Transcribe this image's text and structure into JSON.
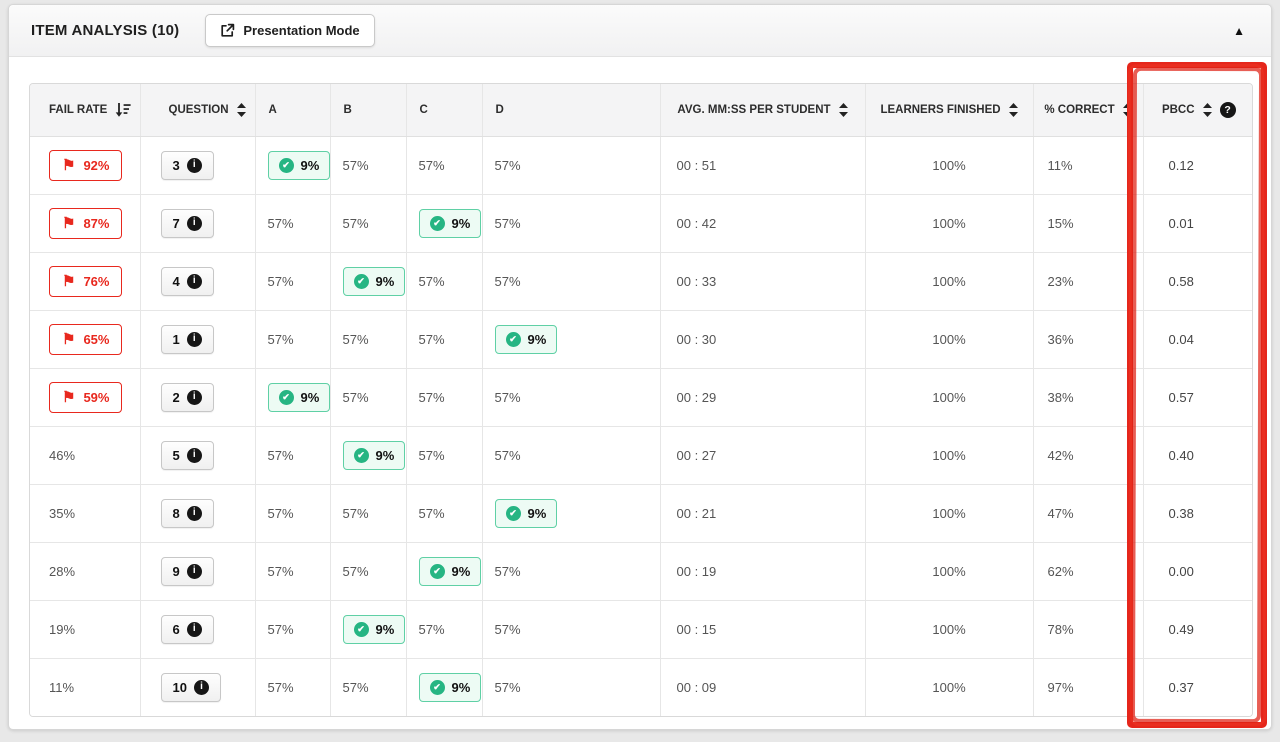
{
  "panel": {
    "title": "ITEM ANALYSIS (10)",
    "presentation_button": "Presentation Mode",
    "question_count": 10
  },
  "icons": {
    "flag": "⚑",
    "check": "✔",
    "info": "i",
    "help": "?",
    "caret_up": "▲",
    "external_link": "external-link-icon",
    "sort_active": "sort-amount-desc-icon",
    "sort": "sort-up-down-icon"
  },
  "colors": {
    "flag_red": "#e8281e",
    "annotation_red": "#e5261b",
    "correct_green": "#26b583",
    "correct_badge_bg": "#edfbf4",
    "correct_badge_border": "#5fd0a5",
    "header_bg": "#f4f4f5"
  },
  "table": {
    "columns": [
      {
        "key": "fail_rate",
        "label": "FAIL RATE",
        "sort": "descending-active"
      },
      {
        "key": "question",
        "label": "QUESTION",
        "sort": "sortable"
      },
      {
        "key": "a",
        "label": "A",
        "sort": "none"
      },
      {
        "key": "b",
        "label": "B",
        "sort": "none"
      },
      {
        "key": "c",
        "label": "C",
        "sort": "none"
      },
      {
        "key": "d",
        "label": "D",
        "sort": "none"
      },
      {
        "key": "avg_time",
        "label": "AVG. MM:SS PER STUDENT",
        "sort": "sortable"
      },
      {
        "key": "learners_finished",
        "label": "LEARNERS FINISHED",
        "sort": "sortable"
      },
      {
        "key": "pct_correct",
        "label": "% CORRECT",
        "sort": "sortable"
      },
      {
        "key": "pbcc",
        "label": "PBCC",
        "sort": "sortable",
        "help": true
      }
    ],
    "rows": [
      {
        "fail_rate": "92%",
        "flagged": true,
        "question": "3",
        "answers": {
          "a": {
            "value": "9%",
            "correct": true
          },
          "b": {
            "value": "57%"
          },
          "c": {
            "value": "57%"
          },
          "d": {
            "value": "57%"
          }
        },
        "avg_time": "00 : 51",
        "learners_finished": "100%",
        "pct_correct": "11%",
        "pbcc": "0.12"
      },
      {
        "fail_rate": "87%",
        "flagged": true,
        "question": "7",
        "answers": {
          "a": {
            "value": "57%"
          },
          "b": {
            "value": "57%"
          },
          "c": {
            "value": "9%",
            "correct": true
          },
          "d": {
            "value": "57%"
          }
        },
        "avg_time": "00 : 42",
        "learners_finished": "100%",
        "pct_correct": "15%",
        "pbcc": "0.01"
      },
      {
        "fail_rate": "76%",
        "flagged": true,
        "question": "4",
        "answers": {
          "a": {
            "value": "57%"
          },
          "b": {
            "value": "9%",
            "correct": true
          },
          "c": {
            "value": "57%"
          },
          "d": {
            "value": "57%"
          }
        },
        "avg_time": "00 : 33",
        "learners_finished": "100%",
        "pct_correct": "23%",
        "pbcc": "0.58"
      },
      {
        "fail_rate": "65%",
        "flagged": true,
        "question": "1",
        "answers": {
          "a": {
            "value": "57%"
          },
          "b": {
            "value": "57%"
          },
          "c": {
            "value": "57%"
          },
          "d": {
            "value": "9%",
            "correct": true
          }
        },
        "avg_time": "00 : 30",
        "learners_finished": "100%",
        "pct_correct": "36%",
        "pbcc": "0.04"
      },
      {
        "fail_rate": "59%",
        "flagged": true,
        "question": "2",
        "answers": {
          "a": {
            "value": "9%",
            "correct": true
          },
          "b": {
            "value": "57%"
          },
          "c": {
            "value": "57%"
          },
          "d": {
            "value": "57%"
          }
        },
        "avg_time": "00 : 29",
        "learners_finished": "100%",
        "pct_correct": "38%",
        "pbcc": "0.57"
      },
      {
        "fail_rate": "46%",
        "flagged": false,
        "question": "5",
        "answers": {
          "a": {
            "value": "57%"
          },
          "b": {
            "value": "9%",
            "correct": true
          },
          "c": {
            "value": "57%"
          },
          "d": {
            "value": "57%"
          }
        },
        "avg_time": "00 : 27",
        "learners_finished": "100%",
        "pct_correct": "42%",
        "pbcc": "0.40"
      },
      {
        "fail_rate": "35%",
        "flagged": false,
        "question": "8",
        "answers": {
          "a": {
            "value": "57%"
          },
          "b": {
            "value": "57%"
          },
          "c": {
            "value": "57%"
          },
          "d": {
            "value": "9%",
            "correct": true
          }
        },
        "avg_time": "00 : 21",
        "learners_finished": "100%",
        "pct_correct": "47%",
        "pbcc": "0.38"
      },
      {
        "fail_rate": "28%",
        "flagged": false,
        "question": "9",
        "answers": {
          "a": {
            "value": "57%"
          },
          "b": {
            "value": "57%"
          },
          "c": {
            "value": "9%",
            "correct": true
          },
          "d": {
            "value": "57%"
          }
        },
        "avg_time": "00 : 19",
        "learners_finished": "100%",
        "pct_correct": "62%",
        "pbcc": "0.00"
      },
      {
        "fail_rate": "19%",
        "flagged": false,
        "question": "6",
        "answers": {
          "a": {
            "value": "57%"
          },
          "b": {
            "value": "9%",
            "correct": true
          },
          "c": {
            "value": "57%"
          },
          "d": {
            "value": "57%"
          }
        },
        "avg_time": "00 : 15",
        "learners_finished": "100%",
        "pct_correct": "78%",
        "pbcc": "0.49"
      },
      {
        "fail_rate": "11%",
        "flagged": false,
        "question": "10",
        "answers": {
          "a": {
            "value": "57%"
          },
          "b": {
            "value": "57%"
          },
          "c": {
            "value": "9%",
            "correct": true
          },
          "d": {
            "value": "57%"
          }
        },
        "avg_time": "00 : 09",
        "learners_finished": "100%",
        "pct_correct": "97%",
        "pbcc": "0.37"
      }
    ]
  },
  "annotation": {
    "target": "pbcc-column",
    "style": "hand-drawn-red-rectangle"
  }
}
